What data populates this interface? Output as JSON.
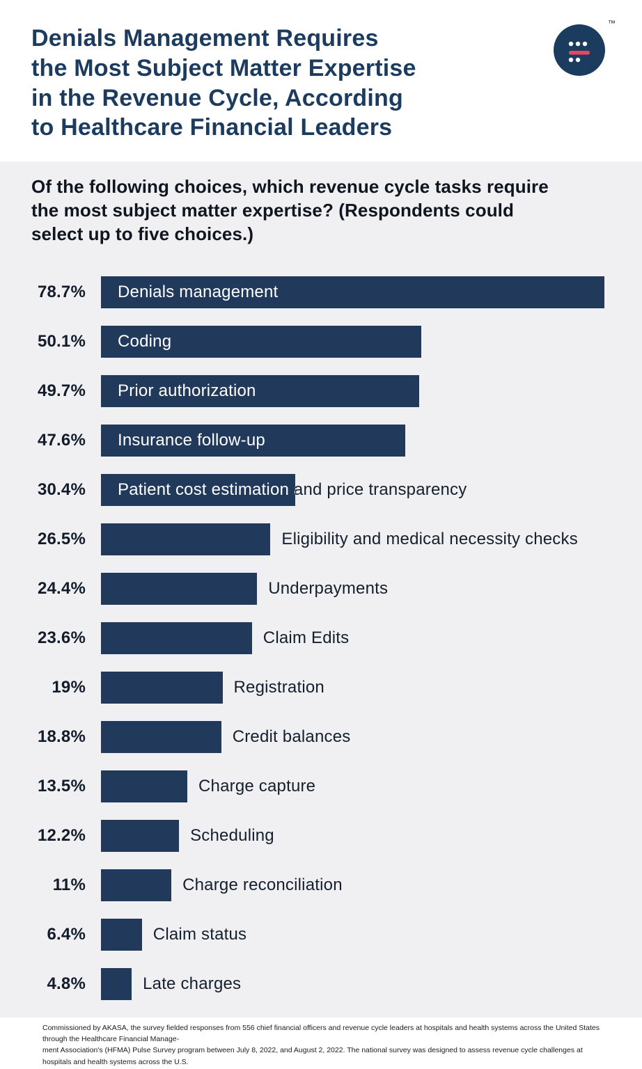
{
  "header": {
    "trademark": "™",
    "logo": "akasa-logo"
  },
  "chart_data": {
    "type": "bar",
    "orientation": "horizontal",
    "title": "Denials Management Requires\nthe Most Subject Matter Expertise\nin the Revenue Cycle, According\nto Healthcare Financial Leaders",
    "subtitle": "Of the following choices, which revenue cycle tasks require\nthe most subject matter expertise? (Respondents could\nselect up to five choices.)",
    "value_unit": "%",
    "max_value": 78.7,
    "grid": false,
    "legend": false,
    "items": [
      {
        "label": "Denials management",
        "value": 78.7,
        "display": "78.7%",
        "label_position": "inside"
      },
      {
        "label": "Coding",
        "value": 50.1,
        "display": "50.1%",
        "label_position": "inside"
      },
      {
        "label": "Prior authorization",
        "value": 49.7,
        "display": "49.7%",
        "label_position": "inside"
      },
      {
        "label": "Insurance follow-up",
        "value": 47.6,
        "display": "47.6%",
        "label_position": "inside"
      },
      {
        "label": "Patient cost estimation and price transparency",
        "value": 30.4,
        "display": "30.4%",
        "label_position": "inside"
      },
      {
        "label": "Eligibility and medical necessity checks",
        "value": 26.5,
        "display": "26.5%",
        "label_position": "outside"
      },
      {
        "label": "Underpayments",
        "value": 24.4,
        "display": "24.4%",
        "label_position": "outside"
      },
      {
        "label": "Claim Edits",
        "value": 23.6,
        "display": "23.6%",
        "label_position": "outside"
      },
      {
        "label": "Registration",
        "value": 19,
        "display": "19%",
        "label_position": "outside"
      },
      {
        "label": "Credit balances",
        "value": 18.8,
        "display": "18.8%",
        "label_position": "outside"
      },
      {
        "label": "Charge capture",
        "value": 13.5,
        "display": "13.5%",
        "label_position": "outside"
      },
      {
        "label": "Scheduling",
        "value": 12.2,
        "display": "12.2%",
        "label_position": "outside"
      },
      {
        "label": "Charge reconciliation",
        "value": 11,
        "display": "11%",
        "label_position": "outside"
      },
      {
        "label": "Claim status",
        "value": 6.4,
        "display": "6.4%",
        "label_position": "outside"
      },
      {
        "label": "Late charges",
        "value": 4.8,
        "display": "4.8%",
        "label_position": "outside"
      }
    ],
    "source": "Commissioned by AKASA, the survey fielded responses from 556 chief financial officers and revenue cycle leaders at hospitals and health systems across the United States through the Healthcare Financial Manage-\nment Association's (HFMA) Pulse Survey program between July 8, 2022, and August 2, 2022. The national survey was designed to assess revenue cycle challenges at hospitals and health systems across the U.S."
  },
  "colors": {
    "bar": "#21395a",
    "title": "#1c3c5f",
    "panel_background": "#f0eff1",
    "accent_red": "#e8485e",
    "inside_label": "#ffffff",
    "outside_label": "#15202e"
  }
}
